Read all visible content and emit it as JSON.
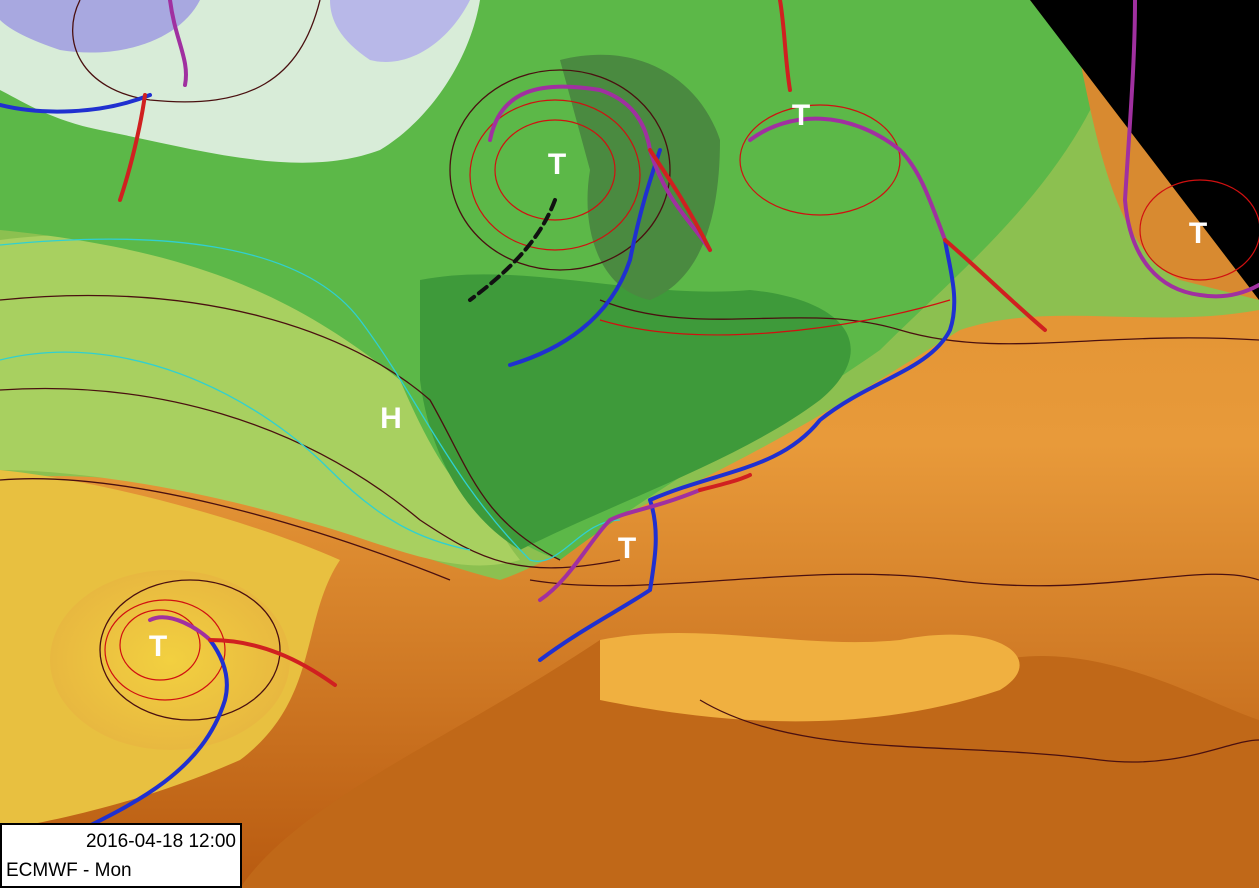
{
  "map": {
    "pressure_labels": [
      "T",
      "T",
      "T",
      "H",
      "T",
      "T"
    ],
    "timestamp": "2016-04-18 12:00",
    "model": "ECMWF - Mon"
  }
}
